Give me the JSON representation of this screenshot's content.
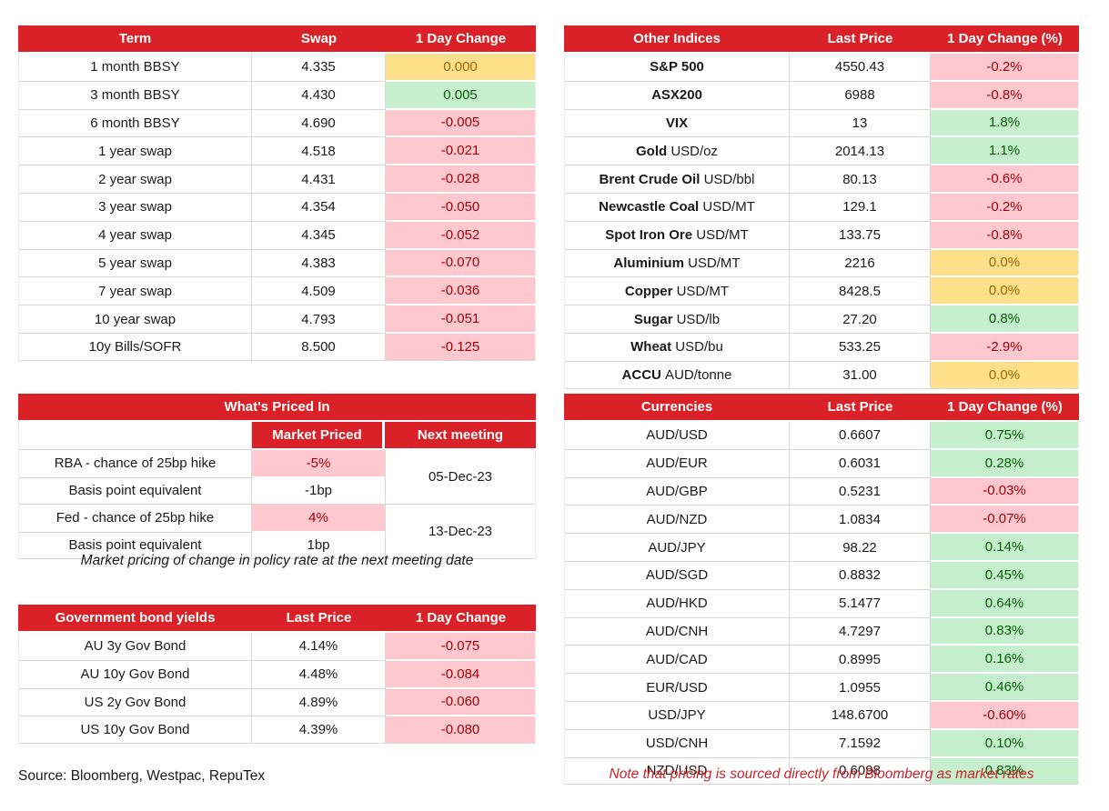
{
  "colors": {
    "header_red": "#D92127",
    "positive_bg": "#C6EFCE",
    "positive_text": "#006100",
    "negative_bg": "#FFC7CE",
    "negative_text": "#9C0006",
    "neutral_bg": "#FFE08A",
    "neutral_text": "#9C6500",
    "note_red": "#CC2229",
    "grid_line": "#D9D9D9"
  },
  "tables": {
    "swaps": {
      "headers": [
        "Term",
        "Swap",
        "1 Day Change"
      ],
      "rows": [
        {
          "label": "1 month BBSY",
          "value": "4.335",
          "change": "0.000",
          "change_style": "neutral"
        },
        {
          "label": "3 month BBSY",
          "value": "4.430",
          "change": "0.005",
          "change_style": "up"
        },
        {
          "label": "6 month BBSY",
          "value": "4.690",
          "change": "-0.005",
          "change_style": "down"
        },
        {
          "label": "1 year swap",
          "value": "4.518",
          "change": "-0.021",
          "change_style": "down"
        },
        {
          "label": "2 year swap",
          "value": "4.431",
          "change": "-0.028",
          "change_style": "down"
        },
        {
          "label": "3 year swap",
          "value": "4.354",
          "change": "-0.050",
          "change_style": "down"
        },
        {
          "label": "4 year swap",
          "value": "4.345",
          "change": "-0.052",
          "change_style": "down"
        },
        {
          "label": "5 year swap",
          "value": "4.383",
          "change": "-0.070",
          "change_style": "down"
        },
        {
          "label": "7 year swap",
          "value": "4.509",
          "change": "-0.036",
          "change_style": "down"
        },
        {
          "label": "10 year swap",
          "value": "4.793",
          "change": "-0.051",
          "change_style": "down"
        },
        {
          "label": "10y Bills/SOFR",
          "value": "8.500",
          "change": "-0.125",
          "change_style": "down"
        }
      ]
    },
    "other_indices": {
      "headers": [
        "Other Indices",
        "Last Price",
        "1 Day Change (%)"
      ],
      "rows": [
        {
          "label_bold": "S&P 500",
          "label_unit": "",
          "value": "4550.43",
          "change": "-0.2%",
          "change_style": "down"
        },
        {
          "label_bold": "ASX200",
          "label_unit": "",
          "value": "6988",
          "change": "-0.8%",
          "change_style": "down"
        },
        {
          "label_bold": "VIX",
          "label_unit": "",
          "value": "13",
          "change": "1.8%",
          "change_style": "up"
        },
        {
          "label_bold": "Gold",
          "label_unit": "USD/oz",
          "value": "2014.13",
          "change": "1.1%",
          "change_style": "up"
        },
        {
          "label_bold": "Brent Crude Oil",
          "label_unit": "USD/bbl",
          "value": "80.13",
          "change": "-0.6%",
          "change_style": "down"
        },
        {
          "label_bold": "Newcastle Coal",
          "label_unit": "USD/MT",
          "value": "129.1",
          "change": "-0.2%",
          "change_style": "down"
        },
        {
          "label_bold": "Spot Iron Ore",
          "label_unit": "USD/MT",
          "value": "133.75",
          "change": "-0.8%",
          "change_style": "down"
        },
        {
          "label_bold": "Aluminium",
          "label_unit": "USD/MT",
          "value": "2216",
          "change": "0.0%",
          "change_style": "neutral"
        },
        {
          "label_bold": "Copper",
          "label_unit": "USD/MT",
          "value": "8428.5",
          "change": "0.0%",
          "change_style": "neutral"
        },
        {
          "label_bold": "Sugar",
          "label_unit": "USD/lb",
          "value": "27.20",
          "change": "0.8%",
          "change_style": "up"
        },
        {
          "label_bold": "Wheat",
          "label_unit": "USD/bu",
          "value": "533.25",
          "change": "-2.9%",
          "change_style": "down"
        },
        {
          "label_bold": "ACCU",
          "label_unit": "AUD/tonne",
          "value": "31.00",
          "change": "0.0%",
          "change_style": "neutral"
        }
      ]
    },
    "whats_priced_in": {
      "title": "What's Priced In",
      "subheaders": [
        "Market Priced",
        "Next meeting"
      ],
      "rows": [
        {
          "label": "RBA - chance of 25bp hike",
          "value": "-5%",
          "value_style": "down"
        },
        {
          "label": "Basis point equivalent",
          "value": "-1bp",
          "value_style": "plain"
        },
        {
          "label": "Fed - chance of 25bp hike",
          "value": "4%",
          "value_style": "down"
        },
        {
          "label": "Basis point equivalent",
          "value": "1bp",
          "value_style": "plain"
        }
      ],
      "meetings": [
        {
          "date": "05-Dec-23",
          "span": 2
        },
        {
          "date": "13-Dec-23",
          "span": 2
        }
      ],
      "caption": "Market pricing of change in policy rate at the next meeting date"
    },
    "gov_bonds": {
      "headers": [
        "Government bond yields",
        "Last Price",
        "1 Day Change"
      ],
      "rows": [
        {
          "label": "AU 3y Gov Bond",
          "value": "4.14%",
          "change": "-0.075",
          "change_style": "down"
        },
        {
          "label": "AU 10y Gov Bond",
          "value": "4.48%",
          "change": "-0.084",
          "change_style": "down"
        },
        {
          "label": "US 2y Gov Bond",
          "value": "4.89%",
          "change": "-0.060",
          "change_style": "down"
        },
        {
          "label": "US 10y Gov Bond",
          "value": "4.39%",
          "change": "-0.080",
          "change_style": "down"
        }
      ]
    },
    "currencies": {
      "headers": [
        "Currencies",
        "Last Price",
        "1 Day Change (%)"
      ],
      "rows": [
        {
          "label": "AUD/USD",
          "value": "0.6607",
          "change": "0.75%",
          "change_style": "up"
        },
        {
          "label": "AUD/EUR",
          "value": "0.6031",
          "change": "0.28%",
          "change_style": "up"
        },
        {
          "label": "AUD/GBP",
          "value": "0.5231",
          "change": "-0.03%",
          "change_style": "down"
        },
        {
          "label": "AUD/NZD",
          "value": "1.0834",
          "change": "-0.07%",
          "change_style": "down"
        },
        {
          "label": "AUD/JPY",
          "value": "98.22",
          "change": "0.14%",
          "change_style": "up"
        },
        {
          "label": "AUD/SGD",
          "value": "0.8832",
          "change": "0.45%",
          "change_style": "up"
        },
        {
          "label": "AUD/HKD",
          "value": "5.1477",
          "change": "0.64%",
          "change_style": "up"
        },
        {
          "label": "AUD/CNH",
          "value": "4.7297",
          "change": "0.83%",
          "change_style": "up"
        },
        {
          "label": "AUD/CAD",
          "value": "0.8995",
          "change": "0.16%",
          "change_style": "up"
        },
        {
          "label": "EUR/USD",
          "value": "1.0955",
          "change": "0.46%",
          "change_style": "up"
        },
        {
          "label": "USD/JPY",
          "value": "148.6700",
          "change": "-0.60%",
          "change_style": "down"
        },
        {
          "label": "USD/CNH",
          "value": "7.1592",
          "change": "0.10%",
          "change_style": "up"
        },
        {
          "label": "NZD/USD",
          "value": "0.6098",
          "change": "0.83%",
          "change_style": "up"
        }
      ]
    }
  },
  "footer": {
    "source": "Source: Bloomberg, Westpac, RepuTex",
    "note": "Note that pricing is sourced directly from Bloomberg as market rates"
  }
}
